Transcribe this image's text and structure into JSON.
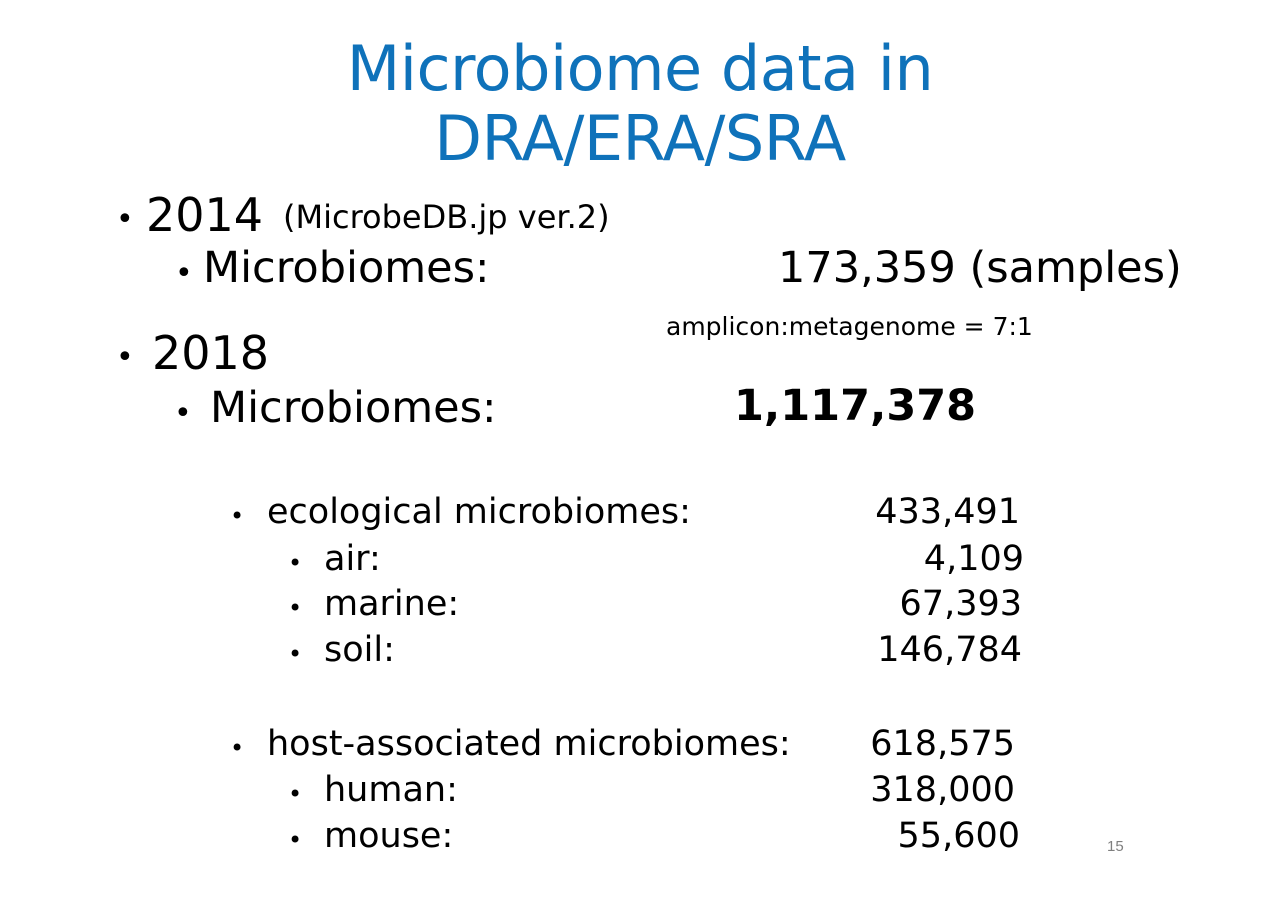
{
  "title": {
    "line1": "Microbiome data in",
    "line2": "DRA/ERA/SRA"
  },
  "colors": {
    "title": "#0f72ba",
    "body": "#000000",
    "page_number": "#7f7f7f"
  },
  "bullet_glyph": "•",
  "sections": [
    {
      "year": "2014",
      "source": "(MicrobeDB.jp ver.2)",
      "microbiomes_label": "Microbiomes:",
      "microbiomes_value": "173,359 (samples)",
      "note": "amplicon:metagenome = 7:1"
    },
    {
      "year": "2018",
      "microbiomes_label": "Microbiomes:",
      "microbiomes_value": "1,117,378",
      "groups": [
        {
          "label": "ecological microbiomes:",
          "value": "433,491",
          "items": [
            {
              "label": "air:",
              "value": "4,109"
            },
            {
              "label": "marine:",
              "value": "67,393"
            },
            {
              "label": "soil:",
              "value": "146,784"
            }
          ]
        },
        {
          "label": "host-associated microbiomes:",
          "value": "618,575",
          "items": [
            {
              "label": "human:",
              "value": "318,000"
            },
            {
              "label": "mouse:",
              "value": "55,600"
            }
          ]
        }
      ]
    }
  ],
  "page_number": "15"
}
